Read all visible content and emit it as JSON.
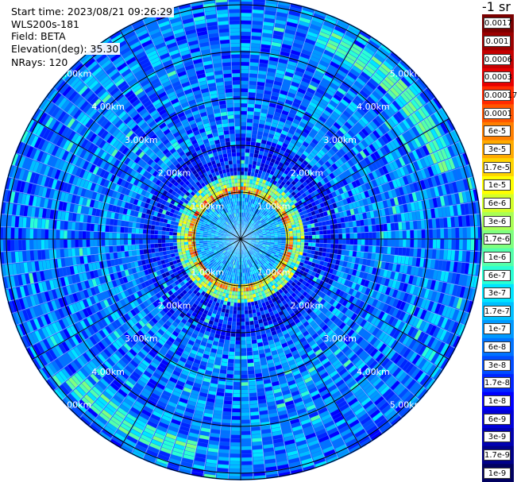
{
  "header": {
    "start_time": "Start time: 2023/08/21 09:26:29",
    "instrument": "WLS200s-181",
    "field": "Field: BETA",
    "elevation": "Elevation(deg): 35.30",
    "nrays": "NRays: 120"
  },
  "range_rings": [
    "1.00km",
    "2.00km",
    "3.00km",
    "4.00km",
    "5.00km"
  ],
  "colorbar": {
    "unit": "-1 sr",
    "labels": [
      "0.0017",
      "0.001",
      "0.0006",
      "0.0003",
      "0.00017",
      "0.0001",
      "6e-5",
      "3e-5",
      "1.7e-5",
      "1e-5",
      "6e-6",
      "3e-6",
      "1.7e-6",
      "1e-6",
      "6e-7",
      "3e-7",
      "1.7e-7",
      "1e-7",
      "6e-8",
      "3e-8",
      "1.7e-8",
      "1e-8",
      "6e-9",
      "3e-9",
      "1.7e-9",
      "1e-9"
    ],
    "colors": [
      "#7a0000",
      "#9b0000",
      "#c40000",
      "#e60000",
      "#ff2a00",
      "#ff5500",
      "#ff7f00",
      "#ffaa00",
      "#ffd400",
      "#ffff00",
      "#d4ff2a",
      "#aaff55",
      "#7fff7f",
      "#55ffaa",
      "#2affd4",
      "#00e5ff",
      "#00bfff",
      "#0099ff",
      "#0073ff",
      "#004cff",
      "#0026ff",
      "#0000ff",
      "#0000d8",
      "#0000b0",
      "#000088",
      "#000060"
    ]
  }
}
